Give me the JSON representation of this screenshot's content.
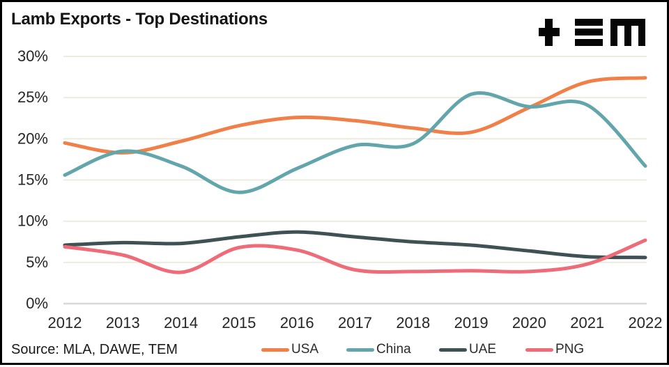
{
  "header": {
    "title": "Lamb Exports - Top Destinations",
    "logo_name": "TEM"
  },
  "source_note": "Source: MLA, DAWE, TEM",
  "chart_data": {
    "type": "line",
    "title": "Lamb Exports - Top Destinations",
    "categories": [
      2012,
      2013,
      2014,
      2015,
      2016,
      2017,
      2018,
      2019,
      2020,
      2021,
      2022
    ],
    "series": [
      {
        "name": "USA",
        "color": "#F08048",
        "values": [
          19.5,
          18.3,
          19.7,
          21.6,
          22.6,
          22.2,
          21.3,
          20.8,
          23.8,
          26.9,
          27.4
        ]
      },
      {
        "name": "China",
        "color": "#62A6AB",
        "values": [
          15.6,
          18.5,
          16.7,
          13.5,
          16.4,
          19.2,
          19.4,
          25.4,
          23.9,
          24.1,
          16.7
        ]
      },
      {
        "name": "UAE",
        "color": "#3E5254",
        "values": [
          7.1,
          7.4,
          7.3,
          8.1,
          8.7,
          8.1,
          7.5,
          7.1,
          6.4,
          5.7,
          5.6
        ]
      },
      {
        "name": "PNG",
        "color": "#EE6B77",
        "values": [
          6.9,
          5.9,
          3.8,
          6.8,
          6.5,
          4.1,
          3.9,
          4.0,
          3.9,
          4.8,
          7.7
        ]
      }
    ],
    "ylim": [
      0,
      30
    ],
    "yticks": [
      0,
      5,
      10,
      15,
      20,
      25,
      30
    ],
    "ytick_suffix": "%",
    "xlabel": "",
    "ylabel": "",
    "grid": "horizontal",
    "smooth": true,
    "legend_position": "bottom",
    "colors": {
      "gridline": "#ECE9DD",
      "zero_line": "#D9D9D9",
      "axis_text": "#262626"
    }
  }
}
